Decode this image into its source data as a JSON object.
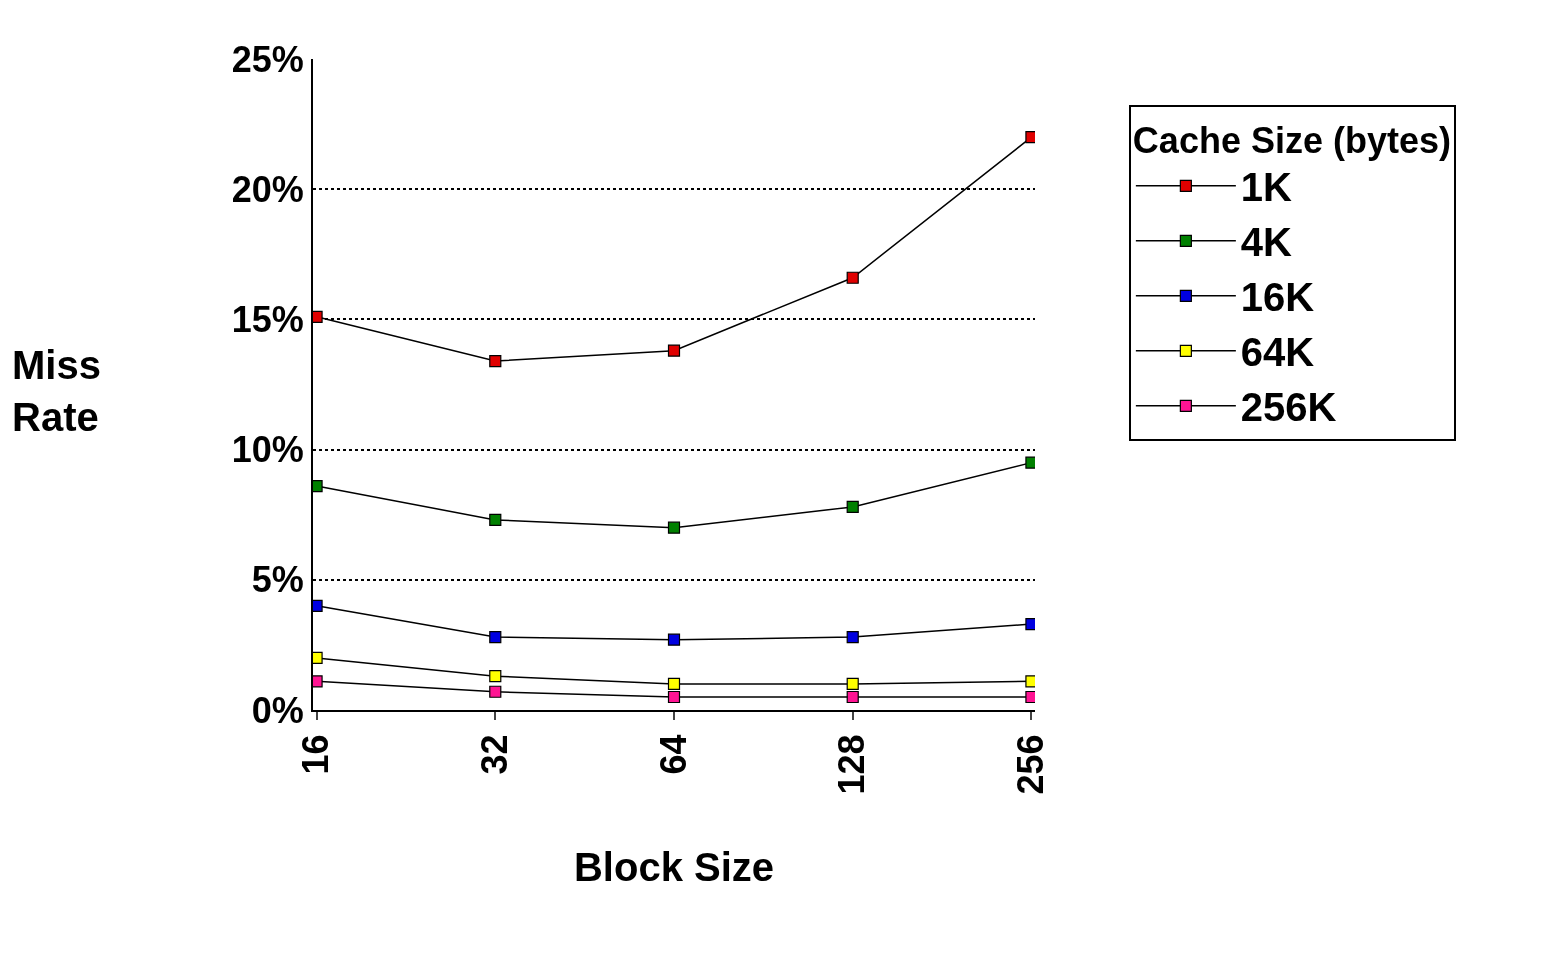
{
  "chart_data": {
    "type": "line",
    "xlabel": "Block Size",
    "ylabel": "Miss Rate",
    "legend_title": "Cache Size (bytes)",
    "categories": [
      "16",
      "32",
      "64",
      "128",
      "256"
    ],
    "series": [
      {
        "name": "1K",
        "color": "#e00000",
        "values": [
          15.1,
          13.4,
          13.8,
          16.6,
          22.0
        ]
      },
      {
        "name": "4K",
        "color": "#008000",
        "values": [
          8.6,
          7.3,
          7.0,
          7.8,
          9.5
        ]
      },
      {
        "name": "16K",
        "color": "#0000e0",
        "values": [
          4.0,
          2.8,
          2.7,
          2.8,
          3.3
        ]
      },
      {
        "name": "64K",
        "color": "#ffff00",
        "values": [
          2.0,
          1.3,
          1.0,
          1.0,
          1.1
        ]
      },
      {
        "name": "256K",
        "color": "#ff1493",
        "values": [
          1.1,
          0.7,
          0.5,
          0.5,
          0.5
        ]
      }
    ],
    "ylim": [
      0,
      25
    ],
    "yticks": [
      {
        "value": 0,
        "label": "0%"
      },
      {
        "value": 5,
        "label": "5%"
      },
      {
        "value": 10,
        "label": "10%"
      },
      {
        "value": 15,
        "label": "15%"
      },
      {
        "value": 20,
        "label": "20%"
      },
      {
        "value": 25,
        "label": "25%"
      }
    ],
    "grid": "y",
    "legend": "right",
    "marker": "square",
    "line_style": "solid"
  }
}
